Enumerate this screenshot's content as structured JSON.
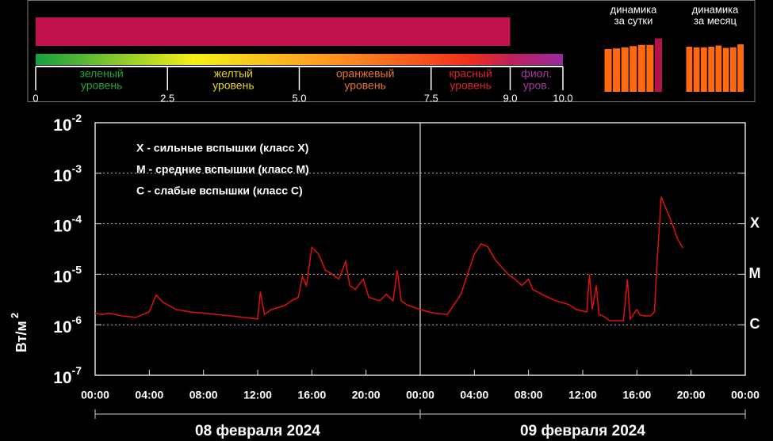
{
  "chart_data": [
    {
      "type": "gauge",
      "value": 9.0,
      "color": "#c3104f",
      "xlim": [
        0,
        10
      ],
      "xticks": [
        0,
        2.5,
        {
          "value": 5,
          "label": "5.0"
        },
        7.5,
        {
          "value": 9,
          "label": "9.0"
        },
        {
          "value": 10,
          "label": "10.0"
        }
      ],
      "zones": [
        {
          "lines": [
            "зеленый",
            "уровень"
          ],
          "color": "#1fa43a"
        },
        {
          "lines": [
            "желтый",
            "уровень"
          ],
          "color": "#e8d21a"
        },
        {
          "lines": [
            "оранжевый",
            "уровень"
          ],
          "color": "#e8732a"
        },
        {
          "lines": [
            "красный",
            "уровень"
          ],
          "color": "#d8232a"
        },
        {
          "lines": [
            "фиол.",
            "уров."
          ],
          "color": "#a23aa0"
        }
      ]
    },
    {
      "type": "bar",
      "title": [
        "динамика",
        "за сутки"
      ],
      "ylim": [
        0,
        10
      ],
      "values": [
        7.2,
        7.3,
        7.5,
        7.7,
        7.9,
        7.9,
        9.0
      ],
      "colors": [
        "#ff6a10",
        "#ff6a10",
        "#ff6a10",
        "#ff6a10",
        "#ff6a10",
        "#ff6a10",
        "#b3124c"
      ]
    },
    {
      "type": "bar",
      "title": [
        "динамика",
        "за месяц"
      ],
      "ylim": [
        0,
        10
      ],
      "values": [
        7.6,
        7.5,
        7.5,
        7.6,
        7.8,
        7.4,
        7.5,
        8.0
      ],
      "colors": [
        "#ff6a10",
        "#ff6a10",
        "#ff6a10",
        "#ff6a10",
        "#ff6a10",
        "#ff6a10",
        "#ff6a10",
        "#ff6a10"
      ]
    },
    {
      "type": "line",
      "log_y": true,
      "grid": true,
      "ylabel": "Вт/м",
      "ylabel_exp": "2",
      "xlim": [
        0,
        48
      ],
      "ylim": [
        1e-07,
        0.01
      ],
      "yticks": [
        {
          "value": 1e-07,
          "label": "10",
          "exponent": "-7"
        },
        {
          "value": 1e-06,
          "label": "10",
          "exponent": "-6"
        },
        {
          "value": 1e-05,
          "label": "10",
          "exponent": "-5"
        },
        {
          "value": 0.0001,
          "label": "10",
          "exponent": "-4"
        },
        {
          "value": 0.001,
          "label": "10",
          "exponent": "-3"
        },
        {
          "value": 0.01,
          "label": "10",
          "exponent": "-2"
        }
      ],
      "xticks": [
        {
          "value": 0,
          "label": "00:00"
        },
        {
          "value": 4,
          "label": "04:00"
        },
        {
          "value": 8,
          "label": "08:00"
        },
        {
          "value": 12,
          "label": "12:00"
        },
        {
          "value": 16,
          "label": "16:00"
        },
        {
          "value": 20,
          "label": "20:00"
        },
        {
          "value": 24,
          "label": "00:00"
        },
        {
          "value": 28,
          "label": "04:00"
        },
        {
          "value": 32,
          "label": "08:00"
        },
        {
          "value": 36,
          "label": "12:00"
        },
        {
          "value": 40,
          "label": "16:00"
        },
        {
          "value": 44,
          "label": "20:00"
        },
        {
          "value": 48,
          "label": "00:00"
        }
      ],
      "dates": [
        "08 февраля 2024",
        "09 февраля 2024"
      ],
      "legend_text": [
        "X  - сильные вспышки (класс X)",
        "M  - средние вспышки (класс M)",
        "C  - слабые вспышки (класс C)"
      ],
      "classes": [
        {
          "label": "X",
          "value": 0.0001
        },
        {
          "label": "M",
          "value": 1e-05
        },
        {
          "label": "C",
          "value": 1e-06
        }
      ],
      "series": [
        {
          "color": "#e01010",
          "x": [
            0,
            0.5,
            1,
            2,
            3,
            4,
            4.5,
            5,
            6,
            7,
            8,
            9,
            10,
            11,
            12,
            12.2,
            12.5,
            13,
            14,
            14.5,
            15,
            15.3,
            15.6,
            16,
            16.5,
            17,
            17.5,
            18,
            18.5,
            18.8,
            19.2,
            19.8,
            20.2,
            21,
            21.5,
            22,
            22.3,
            22.6,
            23,
            24,
            25,
            26,
            26.5,
            27,
            27.5,
            28,
            28.5,
            29,
            29.5,
            30,
            30.5,
            31,
            31.5,
            32,
            32.3,
            33,
            34,
            35,
            35.5,
            36.3,
            36.5,
            36.7,
            37,
            37.2,
            37.5,
            38,
            39,
            39.3,
            39.5,
            40,
            40.2,
            40.5,
            41,
            41.3,
            41.5,
            41.8,
            42,
            42.5,
            43,
            43.4
          ],
          "values": [
            1.7e-06,
            1.6e-06,
            1.7e-06,
            1.5e-06,
            1.4e-06,
            1.8e-06,
            3.9e-06,
            2.8e-06,
            2e-06,
            1.8e-06,
            1.7e-06,
            1.6e-06,
            1.5e-06,
            1.4e-06,
            1.3e-06,
            4.5e-06,
            1.6e-06,
            2e-06,
            2.4e-06,
            3e-06,
            3.5e-06,
            9e-06,
            6e-06,
            3.4e-05,
            2.5e-05,
            1.2e-05,
            1e-05,
            8e-06,
            1.8e-05,
            6e-06,
            5e-06,
            8e-06,
            3.5e-06,
            3e-06,
            4e-06,
            3e-06,
            1.2e-05,
            3e-06,
            2.5e-06,
            2e-06,
            1.7e-06,
            1.6e-06,
            2.5e-06,
            4e-06,
            1e-05,
            2.5e-05,
            4e-05,
            3.5e-05,
            2e-05,
            1.4e-05,
            1e-05,
            8e-06,
            6e-06,
            8e-06,
            5e-06,
            4e-06,
            3e-06,
            2.5e-06,
            2e-06,
            1.8e-06,
            1e-05,
            2e-06,
            6e-06,
            1.6e-06,
            1.5e-06,
            1.2e-06,
            1.2e-06,
            8e-06,
            1.3e-06,
            2e-06,
            1.6e-06,
            1.5e-06,
            1.5e-06,
            1.8e-06,
            2e-05,
            0.00034,
            0.00025,
            0.00012,
            5e-05,
            3.3e-05
          ]
        }
      ]
    }
  ]
}
